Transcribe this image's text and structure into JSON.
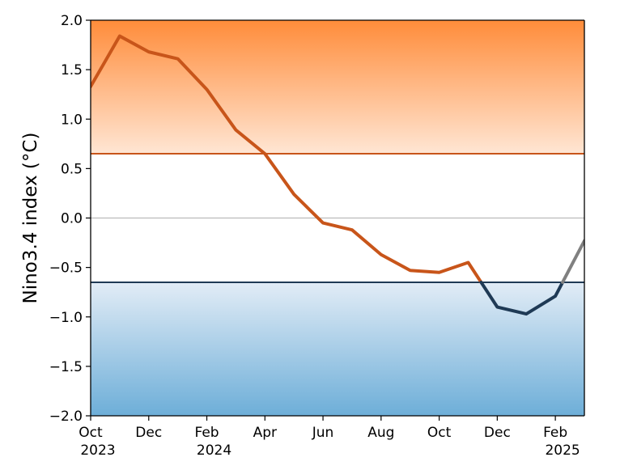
{
  "chart_data": {
    "type": "line",
    "title": "",
    "xlabel": "",
    "ylabel": "Nino3.4 index (°C)",
    "ylim": [
      -2.0,
      2.0
    ],
    "xlim": [
      "2023-10",
      "2025-03"
    ],
    "y_ticks": [
      2.0,
      1.5,
      1.0,
      0.5,
      0.0,
      -0.5,
      -1.0,
      -1.5,
      -2.0
    ],
    "y_tick_labels": [
      "2.0",
      "1.5",
      "1.0",
      "0.5",
      "0.0",
      "−0.5",
      "−1.0",
      "−1.5",
      "−2.0"
    ],
    "x_ticks": [
      {
        "date": "2023-10",
        "label": "Oct",
        "year": "2023"
      },
      {
        "date": "2023-12",
        "label": "Dec",
        "year": ""
      },
      {
        "date": "2024-02",
        "label": "Feb",
        "year": "2024"
      },
      {
        "date": "2024-04",
        "label": "Apr",
        "year": ""
      },
      {
        "date": "2024-06",
        "label": "Jun",
        "year": ""
      },
      {
        "date": "2024-08",
        "label": "Aug",
        "year": ""
      },
      {
        "date": "2024-10",
        "label": "Oct",
        "year": ""
      },
      {
        "date": "2024-12",
        "label": "Dec",
        "year": ""
      },
      {
        "date": "2025-02",
        "label": "Feb",
        "year": "2025"
      }
    ],
    "thresholds": {
      "el_nino": 0.65,
      "la_nina": -0.65,
      "zero": 0.0
    },
    "x": [
      "2023-10",
      "2023-11",
      "2023-12",
      "2024-01",
      "2024-02",
      "2024-03",
      "2024-04",
      "2024-05",
      "2024-06",
      "2024-07",
      "2024-08",
      "2024-09",
      "2024-10",
      "2024-11",
      "2024-12",
      "2025-01",
      "2025-02",
      "2025-03"
    ],
    "values": [
      1.33,
      1.84,
      1.68,
      1.61,
      1.3,
      0.89,
      0.65,
      0.24,
      -0.05,
      -0.12,
      -0.37,
      -0.53,
      -0.55,
      -0.45,
      -0.9,
      -0.97,
      -0.79,
      -0.23
    ],
    "grid": false,
    "legend": "none"
  },
  "colors": {
    "warm_line": "#c8551a",
    "cold_line": "#1f3a55",
    "neutral_line": "#808080",
    "warm_top": "#ff8c3a",
    "warm_bottom": "#ffe6d4",
    "cold_top": "#e2ecf6",
    "cold_bottom": "#6daed8",
    "zero_line": "#bbbbbb"
  }
}
